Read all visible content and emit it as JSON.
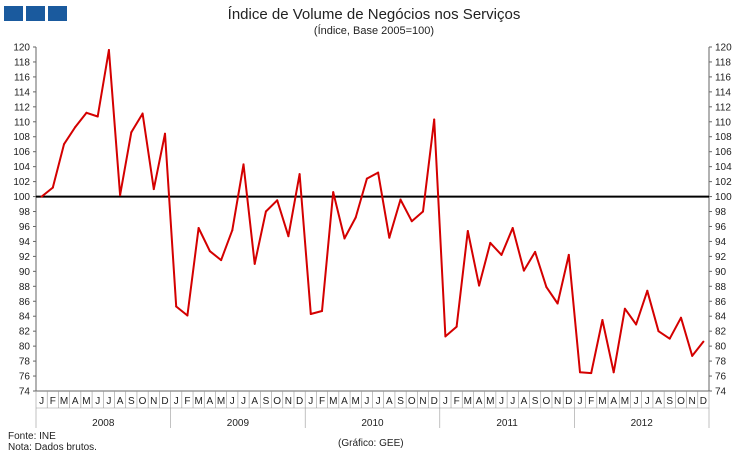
{
  "title": "Índice de Volume de Negócios nos Serviços",
  "subtitle": "(Índice, Base 2005=100)",
  "logo_color": "#1a5a9e",
  "line_color": "#d40000",
  "reference_line_color": "#000000",
  "source": "Fonte: INE",
  "note": "Nota: Dados brutos.",
  "credit": "(Gráfico: GEE)",
  "chart_data": {
    "type": "line",
    "title": "Índice de Volume de Negócios nos Serviços",
    "subtitle": "(Índice, Base 2005=100)",
    "ylim": [
      74,
      120
    ],
    "y_ticks": [
      74,
      76,
      78,
      80,
      82,
      84,
      86,
      88,
      90,
      92,
      94,
      96,
      98,
      100,
      102,
      104,
      106,
      108,
      110,
      112,
      114,
      116,
      118,
      120
    ],
    "y_axis_both_sides": true,
    "reference_line": 100,
    "grid": false,
    "legend": "none",
    "month_labels": [
      "J",
      "F",
      "M",
      "A",
      "M",
      "J",
      "J",
      "A",
      "S",
      "O",
      "N",
      "D"
    ],
    "years": [
      "2008",
      "2009",
      "2010",
      "2011",
      "2012"
    ],
    "series": [
      {
        "values": [
          100.0,
          101.2,
          107.0,
          109.3,
          111.2,
          110.7,
          119.6,
          100.2,
          108.6,
          111.1,
          101.0,
          108.4,
          85.3,
          84.1,
          95.8,
          92.7,
          91.5,
          95.5,
          104.3,
          91.0,
          98.0,
          99.5,
          94.7,
          103.0,
          84.3,
          84.7,
          100.6,
          94.4,
          97.2,
          102.4,
          103.2,
          94.5,
          99.6,
          96.7,
          98.0,
          110.3,
          81.3,
          82.6,
          95.4,
          88.1,
          93.8,
          92.2,
          95.8,
          90.1,
          92.6,
          87.9,
          85.7,
          92.2,
          76.5,
          76.4,
          83.5,
          76.5,
          85.0,
          82.9,
          87.4,
          82.0,
          81.0,
          83.8,
          78.7,
          80.6
        ]
      }
    ]
  }
}
